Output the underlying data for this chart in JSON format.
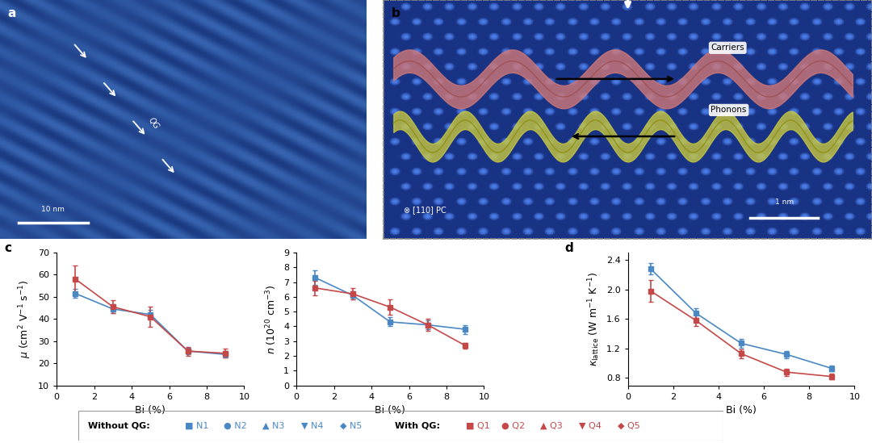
{
  "bi_x": [
    1,
    3,
    5,
    7,
    9
  ],
  "mu_blue": [
    51.5,
    44.5,
    42.0,
    25.5,
    24.0
  ],
  "mu_blue_err": [
    2.0,
    2.0,
    2.0,
    1.5,
    1.5
  ],
  "mu_red": [
    58.0,
    45.5,
    41.0,
    25.5,
    24.5
  ],
  "mu_red_err": [
    6.0,
    3.0,
    4.5,
    2.0,
    2.0
  ],
  "n_blue": [
    7.3,
    6.1,
    4.3,
    4.1,
    3.8
  ],
  "n_blue_err": [
    0.5,
    0.3,
    0.3,
    0.3,
    0.3
  ],
  "n_red": [
    6.6,
    6.2,
    5.3,
    4.1,
    2.7
  ],
  "n_red_err": [
    0.5,
    0.4,
    0.5,
    0.4,
    0.2
  ],
  "kl_blue": [
    2.28,
    1.68,
    1.27,
    1.12,
    0.93
  ],
  "kl_blue_err": [
    0.08,
    0.07,
    0.06,
    0.05,
    0.04
  ],
  "kl_red": [
    1.98,
    1.58,
    1.13,
    0.88,
    0.82
  ],
  "kl_red_err": [
    0.15,
    0.08,
    0.06,
    0.05,
    0.04
  ],
  "blue_color": "#4a88c4",
  "red_color": "#c44848",
  "panel_label_size": 11,
  "axis_label_size": 9,
  "tick_label_size": 8
}
